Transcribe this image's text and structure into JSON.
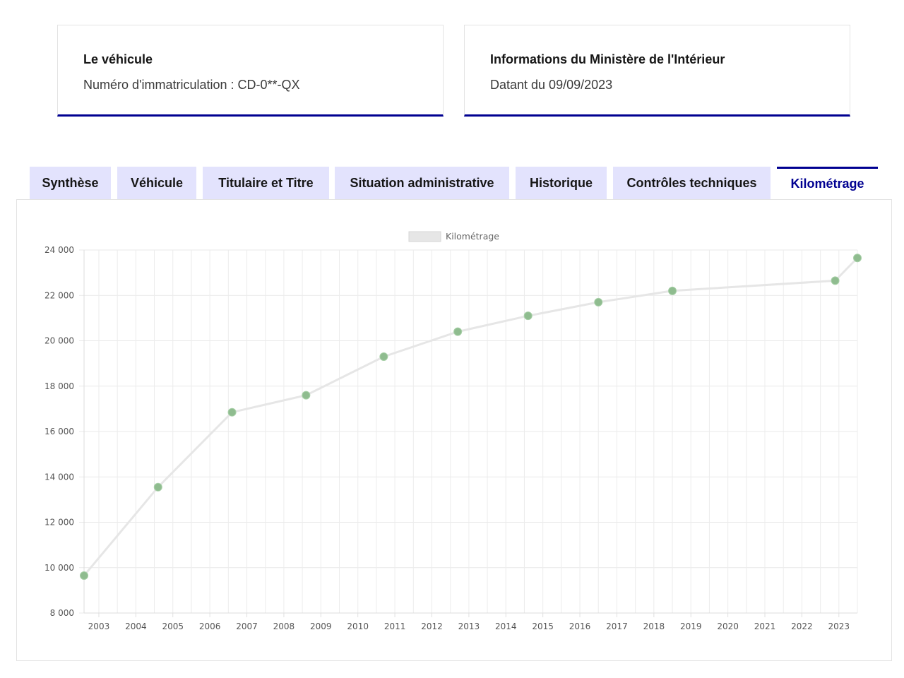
{
  "cards": [
    {
      "title": "Le véhicule",
      "text": "Numéro d'immatriculation : CD-0**-QX"
    },
    {
      "title": "Informations du Ministère de l'Intérieur",
      "text": "Datant du 09/09/2023"
    }
  ],
  "tabs": [
    {
      "label": "Synthèse",
      "active": false
    },
    {
      "label": "Véhicule",
      "active": false
    },
    {
      "label": "Titulaire et Titre",
      "active": false
    },
    {
      "label": "Situation administrative",
      "active": false
    },
    {
      "label": "Historique",
      "active": false
    },
    {
      "label": "Contrôles techniques",
      "active": false
    },
    {
      "label": "Kilométrage",
      "active": true
    }
  ],
  "colors": {
    "accent": "#000091",
    "tab_bg": "#e3e3fd",
    "line": "#e6e6e6",
    "point": "#8fbc8f"
  },
  "chart_data": {
    "type": "line",
    "title": "",
    "xlabel": "",
    "ylabel": "",
    "legend": {
      "label": "Kilométrage",
      "position": "top"
    },
    "grid": true,
    "ylim": [
      8000,
      24000
    ],
    "yticks": [
      "8 000",
      "10 000",
      "12 000",
      "14 000",
      "16 000",
      "18 000",
      "20 000",
      "22 000",
      "24 000"
    ],
    "xlim": [
      2002.6,
      2023.5
    ],
    "xticks": [
      "2003",
      "2004",
      "2005",
      "2006",
      "2007",
      "2008",
      "2009",
      "2010",
      "2011",
      "2012",
      "2013",
      "2014",
      "2015",
      "2016",
      "2017",
      "2018",
      "2019",
      "2020",
      "2021",
      "2022",
      "2023"
    ],
    "series": [
      {
        "name": "Kilométrage",
        "x": [
          2002.6,
          2004.6,
          2006.6,
          2008.6,
          2010.7,
          2012.7,
          2014.6,
          2016.5,
          2018.5,
          2022.9,
          2023.5
        ],
        "y": [
          9650,
          13550,
          16850,
          17600,
          19300,
          20400,
          21100,
          21700,
          22200,
          22650,
          23650
        ]
      }
    ]
  }
}
